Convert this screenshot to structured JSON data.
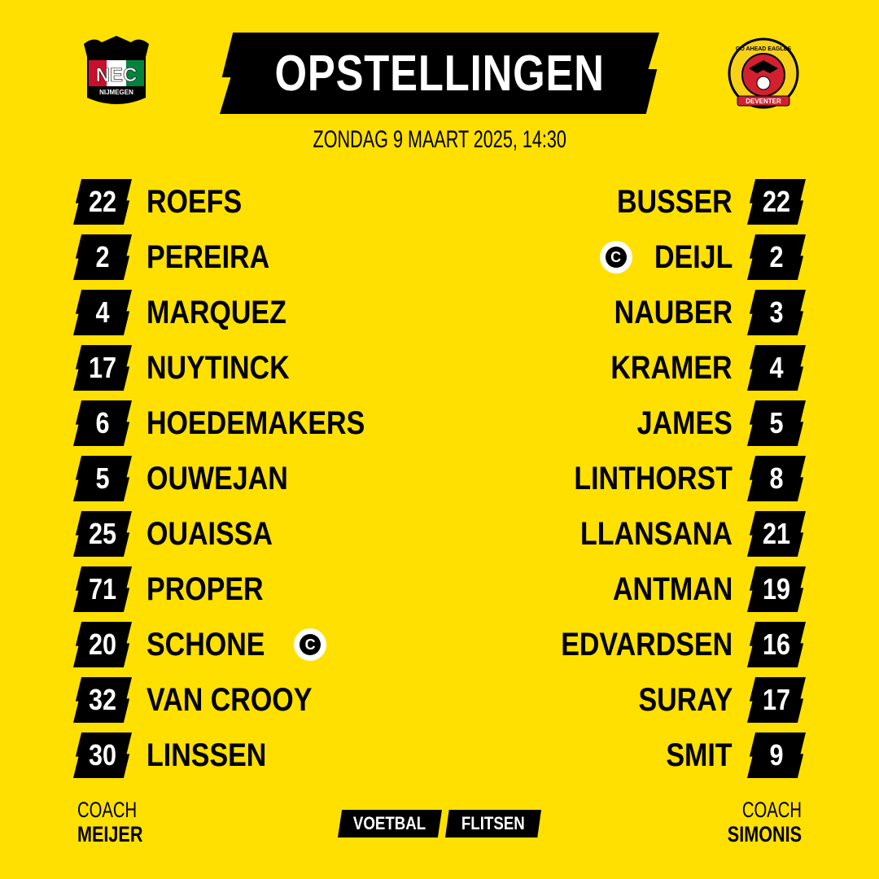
{
  "title": "OPSTELLINGEN",
  "date": "ZONDAG 9 MAART 2025, 14:30",
  "home": {
    "logo_text": "NEC",
    "logo_sub": "NIJMEGEN",
    "colors": [
      "#C8102E",
      "#00843D",
      "#000000"
    ],
    "players": [
      {
        "number": "22",
        "name": "ROEFS"
      },
      {
        "number": "2",
        "name": "PEREIRA"
      },
      {
        "number": "4",
        "name": "MARQUEZ"
      },
      {
        "number": "17",
        "name": "NUYTINCK"
      },
      {
        "number": "6",
        "name": "HOEDEMAKERS"
      },
      {
        "number": "5",
        "name": "OUWEJAN"
      },
      {
        "number": "25",
        "name": "OUAISSA"
      },
      {
        "number": "71",
        "name": "PROPER"
      },
      {
        "number": "20",
        "name": "SCHONE",
        "captain": true
      },
      {
        "number": "32",
        "name": "VAN CROOY"
      },
      {
        "number": "30",
        "name": "LINSSEN"
      }
    ],
    "coach_label": "COACH",
    "coach": "MEIJER"
  },
  "away": {
    "logo_text": "GO AHEAD EAGLES",
    "logo_sub": "DEVENTER",
    "colors": [
      "#D2202F",
      "#F7D117"
    ],
    "players": [
      {
        "number": "22",
        "name": "BUSSER"
      },
      {
        "number": "2",
        "name": "DEIJL",
        "captain": true
      },
      {
        "number": "3",
        "name": "NAUBER"
      },
      {
        "number": "4",
        "name": "KRAMER"
      },
      {
        "number": "5",
        "name": "JAMES"
      },
      {
        "number": "8",
        "name": "LINTHORST"
      },
      {
        "number": "21",
        "name": "LLANSANA"
      },
      {
        "number": "19",
        "name": "ANTMAN"
      },
      {
        "number": "16",
        "name": "EDVARDSEN"
      },
      {
        "number": "17",
        "name": "SURAY"
      },
      {
        "number": "9",
        "name": "SMIT"
      }
    ],
    "coach_label": "COACH",
    "coach": "SIMONIS"
  },
  "captain_mark": "C",
  "brand": [
    "VOETBAL",
    "FLITSEN"
  ],
  "background": "#FFE000"
}
